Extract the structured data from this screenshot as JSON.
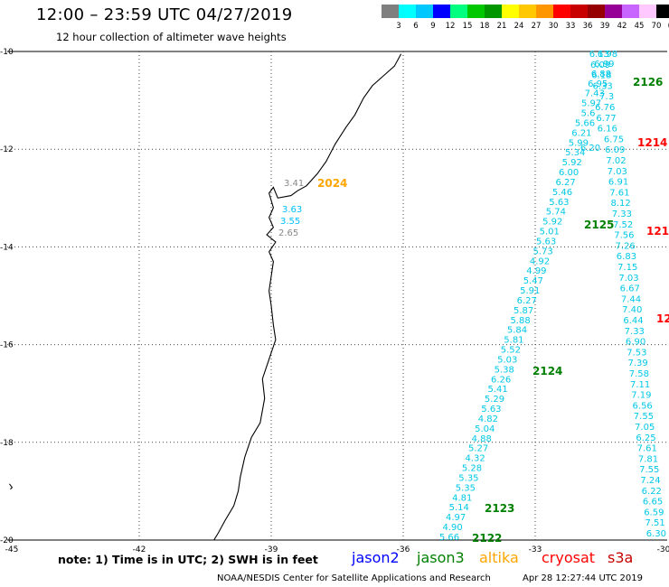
{
  "title": "12:00 – 23:59 UTC 04/27/2019",
  "subtitle": "12 hour collection of altimeter wave heights",
  "colorbar": {
    "colors": [
      "#7f7f7f",
      "#00ffff",
      "#00c8ff",
      "#0000ff",
      "#00ff7f",
      "#00c800",
      "#009600",
      "#ffff00",
      "#ffc800",
      "#ff9600",
      "#ff0000",
      "#c80000",
      "#960000",
      "#960096",
      "#c864ff",
      "#ffc8ff",
      "#000000"
    ],
    "ticks": [
      "3",
      "6",
      "9",
      "12",
      "15",
      "18",
      "21",
      "24",
      "27",
      "30",
      "33",
      "36",
      "39",
      "42",
      "45",
      "70",
      "(ft)"
    ]
  },
  "map": {
    "x_axis_labels": [
      "-45",
      "-42",
      "-39",
      "-36",
      "-33",
      "-30"
    ],
    "y_axis_labels": [
      "-10",
      "-12",
      "-14",
      "-16",
      "-18",
      "-20"
    ],
    "track_labels": [
      {
        "text": "2126",
        "color": "#008000"
      },
      {
        "text": "1214",
        "color": "#ff0000"
      },
      {
        "text": "2024",
        "color": "#ffa500"
      },
      {
        "text": "2125",
        "color": "#008000"
      },
      {
        "text": "121",
        "color": "#ff0000"
      },
      {
        "text": "12",
        "color": "#ff0000"
      },
      {
        "text": "2124",
        "color": "#008000"
      },
      {
        "text": "2123",
        "color": "#008000"
      },
      {
        "text": "2122",
        "color": "#008000"
      }
    ],
    "coastal_values": [
      {
        "text": "3.41",
        "color": "#888888"
      },
      {
        "text": "3.63",
        "color": "#00bfff"
      },
      {
        "text": "3.55",
        "color": "#00bfff"
      },
      {
        "text": "2.65",
        "color": "#888888"
      }
    ],
    "track_a_values": [
      "6.13",
      "6.09",
      "6.18",
      "6.33",
      "7.3",
      "6.76",
      "6.77",
      "6.16",
      "6.75",
      "6.09",
      "7.02",
      "7.03",
      "6.91",
      "7.61",
      "8.12",
      "7.33",
      "7.52",
      "7.56",
      "7.26",
      "6.83",
      "7.15",
      "7.03",
      "6.67",
      "7.44",
      "7.40",
      "6.44",
      "7.33",
      "6.90",
      "7.53",
      "7.39",
      "7.58",
      "7.11",
      "7.19",
      "6.56",
      "7.55",
      "7.05",
      "6.25",
      "7.61",
      "7.81",
      "7.55",
      "7.24",
      "6.22",
      "6.65",
      "6.59",
      "7.51",
      "6.30"
    ],
    "track_b_values": [
      "6.98",
      "6.99",
      "6.88",
      "6.95",
      "7.43",
      "5.97",
      "5.6",
      "5.66",
      "6.21",
      "5.99",
      "5.34",
      "5.92",
      "6.00",
      "6.27",
      "5.46",
      "5.63",
      "5.74",
      "5.92",
      "5.01",
      "5.63",
      "5.73",
      "4.92",
      "4.99",
      "5.47",
      "5.91",
      "6.27",
      "5.87",
      "5.88",
      "5.84",
      "5.81",
      "5.52",
      "5.03",
      "5.38",
      "6.26",
      "5.41",
      "5.29",
      "5.63",
      "4.82",
      "5.04",
      "4.88",
      "5.27",
      "4.32",
      "5.28",
      "5.35",
      "5.35",
      "4.81",
      "5.14",
      "4.97",
      "4.90",
      "5.66"
    ],
    "track_b_extra": [
      "6.20"
    ]
  },
  "footer": {
    "note": "note: 1) Time is in UTC; 2) SWH is in feet",
    "satellites": [
      {
        "name": "jason2",
        "color": "#0000ff"
      },
      {
        "name": "jason3",
        "color": "#008000"
      },
      {
        "name": "altika",
        "color": "#ffa500"
      },
      {
        "name": "cryosat",
        "color": "#ff0000"
      },
      {
        "name": "s3a",
        "color": "#c80000"
      }
    ],
    "credit": "NOAA/NESDIS Center for Satellite Applications and Research",
    "timestamp": "Apr 28 12:27:44 UTC 2019"
  }
}
